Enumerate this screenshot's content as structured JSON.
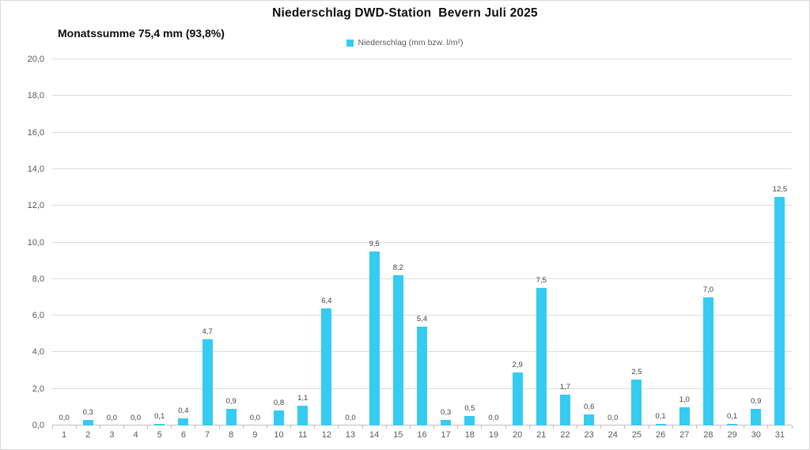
{
  "chart": {
    "title": "Niederschlag DWD-Station  Bevern Juli 2025",
    "subtitle": "Monatssumme 75,4 mm (93,8%)",
    "legend_label": "Niederschlag (mm bzw. l/m²)"
  },
  "chart_data": {
    "type": "bar",
    "title": "Niederschlag DWD-Station Bevern Juli 2025",
    "subtitle": "Monatssumme 75,4 mm (93,8%)",
    "legend": [
      "Niederschlag (mm bzw. l/m²)"
    ],
    "legend_position": "top",
    "xlabel": "",
    "ylabel": "",
    "ylim": [
      0,
      20
    ],
    "y_tick_step": 2,
    "y_tick_labels": [
      "0,0",
      "2,0",
      "4,0",
      "6,0",
      "8,0",
      "10,0",
      "12,0",
      "14,0",
      "16,0",
      "18,0",
      "20,0"
    ],
    "grid": true,
    "bar_color": "#35cbf2",
    "categories": [
      "1",
      "2",
      "3",
      "4",
      "5",
      "6",
      "7",
      "8",
      "9",
      "10",
      "11",
      "12",
      "13",
      "14",
      "15",
      "16",
      "17",
      "18",
      "19",
      "20",
      "21",
      "22",
      "23",
      "24",
      "25",
      "26",
      "27",
      "28",
      "29",
      "30",
      "31"
    ],
    "values": [
      0.0,
      0.3,
      0.0,
      0.0,
      0.1,
      0.4,
      4.7,
      0.9,
      0.0,
      0.8,
      1.1,
      6.4,
      0.0,
      9.5,
      8.2,
      5.4,
      0.3,
      0.5,
      0.0,
      2.9,
      7.5,
      1.7,
      0.6,
      0.0,
      2.5,
      0.1,
      1.0,
      7.0,
      0.1,
      0.9,
      12.5
    ],
    "value_labels": [
      "0,0",
      "0,3",
      "0,0",
      "0,0",
      "0,1",
      "0,4",
      "4,7",
      "0,9",
      "0,0",
      "0,8",
      "1,1",
      "6,4",
      "0,0",
      "9,5",
      "8,2",
      "5,4",
      "0,3",
      "0,5",
      "0,0",
      "2,9",
      "7,5",
      "1,7",
      "0,6",
      "0,0",
      "2,5",
      "0,1",
      "1,0",
      "7,0",
      "0,1",
      "0,9",
      "12,5"
    ],
    "monthly_sum_mm": 75.4,
    "monthly_sum_percent": 93.8
  }
}
